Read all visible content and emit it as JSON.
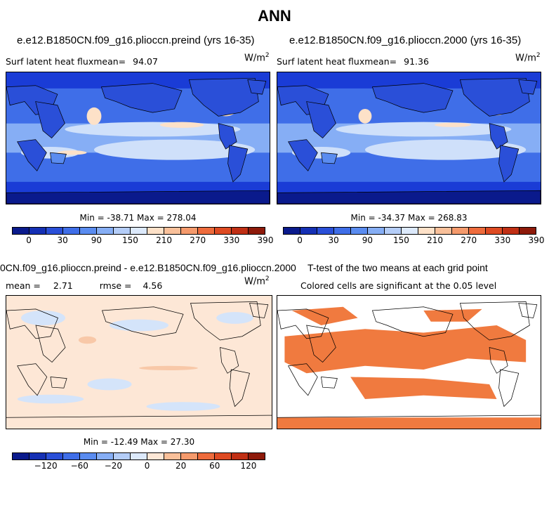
{
  "main_title": "ANN",
  "panels": {
    "top_left": {
      "title": "e.e12.B1850CN.f09_g16.plioccn.preind (yrs 16-35)",
      "stat_label": "Surf latent heat fluxmean=",
      "stat_value": "94.07",
      "units_base": "W/m",
      "units_exp": "2",
      "minmax": "Min = -38.71 Max = 278.04"
    },
    "top_right": {
      "title": "e.e12.B1850CN.f09_g16.plioccn.2000 (yrs 16-35)",
      "stat_label": "Surf latent heat fluxmean=",
      "stat_value": "91.36",
      "units_base": "W/m",
      "units_exp": "2",
      "minmax": "Min = -34.37 Max = 268.83"
    },
    "bottom_left": {
      "title": "0CN.f09_g16.plioccn.preind - e.e12.B1850CN.f09_g16.plioccn.2000",
      "mean_label": "mean =",
      "mean_value": "2.71",
      "rmse_label": "rmse =",
      "rmse_value": "4.56",
      "units_base": "W/m",
      "units_exp": "2",
      "minmax": "Min = -12.49 Max = 27.30"
    },
    "bottom_right": {
      "title": "T-test of the two means at each grid point",
      "subtitle": "Colored cells are significant at the 0.05 level"
    }
  },
  "colorbars": {
    "absolute": {
      "colors": [
        "#0a1a8c",
        "#1530b4",
        "#2a4fd8",
        "#3f6ee8",
        "#5a8cf0",
        "#86aef5",
        "#b4cdf8",
        "#dce9fb",
        "#fde1c8",
        "#f9c09a",
        "#f59a6c",
        "#ee6b3c",
        "#de4a22",
        "#c02f14",
        "#8e1a0a"
      ],
      "ticks": [
        "0",
        "30",
        "90",
        "150",
        "210",
        "270",
        "330",
        "390"
      ]
    },
    "difference": {
      "colors": [
        "#0a1a8c",
        "#1530b4",
        "#2a4fd8",
        "#3f6ee8",
        "#5a8cf0",
        "#86aef5",
        "#b4cdf8",
        "#dce9fb",
        "#fde7d6",
        "#f9c09a",
        "#f59a6c",
        "#ee6b3c",
        "#de4a22",
        "#c02f14",
        "#8e1a0a"
      ],
      "ticks": [
        "-120",
        "-60",
        "-20",
        "0",
        "20",
        "60",
        "120"
      ]
    }
  },
  "map_colors": {
    "deep_blue": "#1a3cd6",
    "mid_blue": "#3f6ee8",
    "light_blue": "#86aef5",
    "pale_blue": "#cfe0fa",
    "peach": "#fde1c8",
    "diff_bg": "#fde7d6",
    "diff_blue": "#d4e4fa",
    "diff_orange": "#f8c8a8",
    "sig_orange": "#f07a3f",
    "land_line": "#000000"
  }
}
